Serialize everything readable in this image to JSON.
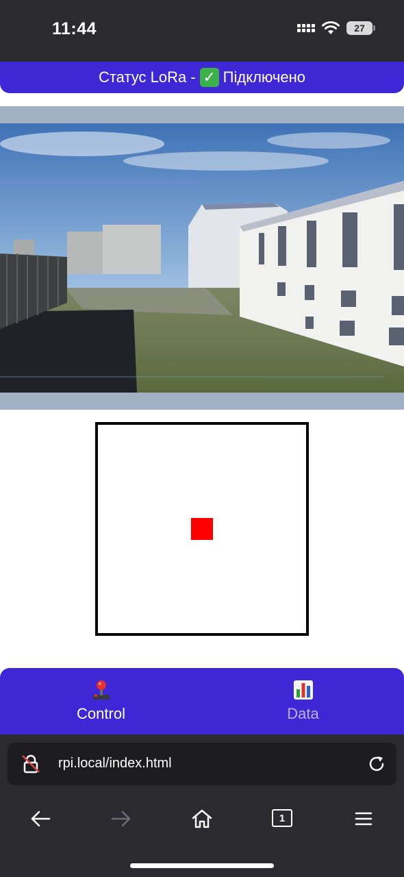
{
  "status_bar": {
    "time": "11:44",
    "battery_level": "27",
    "icons": [
      "cellular-signal-icon",
      "wifi-icon",
      "battery-icon"
    ]
  },
  "lora": {
    "label": "Статус LoRa -",
    "state": "Підключено",
    "state_icon": "check-mark-icon",
    "color": "#4027d6"
  },
  "camera": {
    "icon": "camera-feed"
  },
  "joystick": {
    "knob_color": "#ff0000"
  },
  "tabs": [
    {
      "label": "Control",
      "icon": "joystick-icon",
      "active": true
    },
    {
      "label": "Data",
      "icon": "bar-chart-icon",
      "active": false
    }
  ],
  "browser": {
    "url": "rpi.local/index.html",
    "tab_count": "1",
    "icons": [
      "insecure-lock-icon",
      "reload-icon",
      "back-arrow-icon",
      "forward-arrow-icon",
      "home-icon",
      "tabs-icon",
      "menu-icon"
    ]
  },
  "colors": {
    "accent": "#3f27d6",
    "chrome": "#2b2a2f"
  }
}
